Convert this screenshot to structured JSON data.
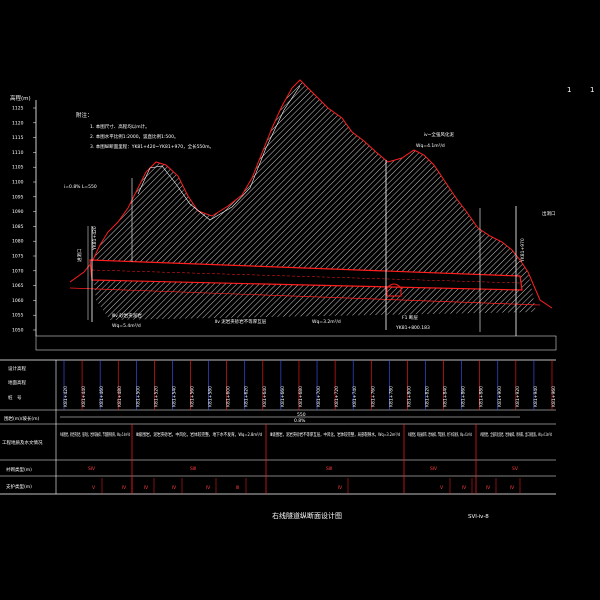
{
  "sheet": {
    "corner_marks": [
      "1",
      "1"
    ],
    "title": "右线隧道纵断面设计图",
    "drawing_no": "SVI-ⅳ-8"
  },
  "axis": {
    "label": "高程(m)",
    "ticks": [
      "1125",
      "1120",
      "1115",
      "1110",
      "1105",
      "1100",
      "1095",
      "1090",
      "1085",
      "1080",
      "1075",
      "1070",
      "1065",
      "1060",
      "1055",
      "1050"
    ]
  },
  "notes": {
    "heading": "附注：",
    "lines": [
      "1. 本图尺寸、高程均以m计。",
      "2. 本图水平比例1:2000，竖直比例1:500。",
      "3. 本图纵断面里程：YK81+420~YK81+970，全长550m。"
    ]
  },
  "annotations": {
    "portal_left": "进洞口",
    "portal_left_station": "YK81+420",
    "portal_right": "出洞口",
    "portal_right_station": "YK81+970",
    "geology_left": "Ⅲv 砂岩夹泥岩",
    "geology_mid": "Ⅱv 泥岩夹砂岩不等厚互层",
    "geology_right": "Ⅳ~v 全强风化泥",
    "water_left": "Wq=5.4m³/d",
    "water_mid": "Wq=3.2m³/d",
    "water_right": "Wq=4.1m³/d",
    "fault": "F1 断层",
    "fault_station": "YK81+800.183",
    "slope_label": "i=0.8%  L=550",
    "right_top_label": "ⅳ~全强风化泥",
    "right_top_sub": "Wq=4.1m³/d"
  },
  "table": {
    "row_labels": [
      "设计高程",
      "地面高程",
      "桩　号",
      "围岩(m)/坡长(m)",
      "工程地质及水文情况",
      "衬砌类型(m)",
      "支护类型(m)"
    ],
    "stations": [
      "K81+420",
      "K81+440",
      "K81+460",
      "K81+480",
      "K81+500",
      "K81+520",
      "K81+540",
      "K81+560",
      "K81+580",
      "K81+600",
      "K81+620",
      "K81+640",
      "K81+660",
      "K81+680",
      "K81+700",
      "K81+720",
      "K81+740",
      "K81+760",
      "K81+780",
      "K81+800",
      "K81+820",
      "K81+840",
      "K81+860",
      "K81+880",
      "K81+900",
      "K81+920",
      "K81+940",
      "K81+960"
    ],
    "gradient_label": "550",
    "gradient_sub": "0.8%",
    "geology_cells": [
      "Ⅳ级围岩，砂岩夹泥岩，强风化，岩体较破碎，节理裂隙发育。Wq=5.4m³/d",
      "Ⅲ级围岩，泥岩夹砂岩，中风化，岩体较完整，地下水不发育。Wq=2.8m³/d",
      "Ⅲ级围岩，泥岩夹砂岩不等厚互层，中风化，岩体较完整，局部裂隙水。Wq=3.2m³/d",
      "Ⅳ级围岩，断层破碎带，岩体破碎，节理发育，地下水较发育。Wq=4.1m³/d",
      "Ⅴ级围岩，全强风化泥岩，岩体破碎，易坍塌，出口浅埋段。Wq=4.1m³/d"
    ],
    "lining_cells": [
      "SⅣ",
      "SⅢ",
      "SⅢ",
      "SⅣ",
      "SⅤ"
    ],
    "support_cells": [
      "Ⅴ",
      "Ⅳ",
      "Ⅳ",
      "Ⅳ",
      "Ⅳ",
      "Ⅲ",
      "Ⅳ",
      "Ⅴ",
      "Ⅳ",
      "Ⅳ",
      "Ⅳ"
    ]
  }
}
